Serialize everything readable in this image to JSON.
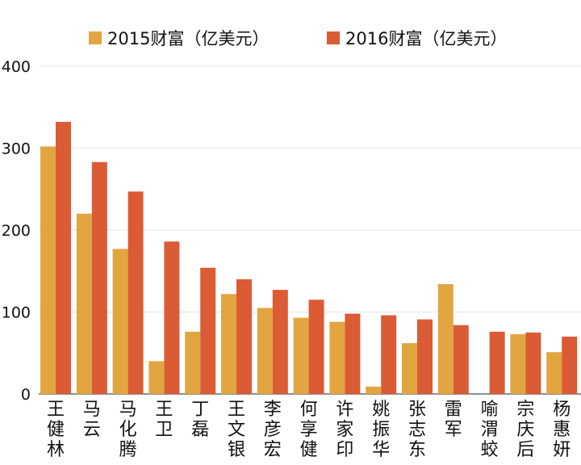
{
  "chart_data": {
    "type": "bar",
    "categories": [
      "王健林",
      "马云",
      "马化腾",
      "王卫",
      "丁磊",
      "王文银",
      "李彦宏",
      "何享健",
      "许家印",
      "姚振华",
      "张志东",
      "雷军",
      "喻渭蛟",
      "宗庆后",
      "杨惠妍"
    ],
    "series": [
      {
        "name": "2015财富（亿美元）",
        "values": [
          302,
          220,
          177,
          40,
          76,
          122,
          105,
          93,
          88,
          9,
          62,
          134,
          null,
          73,
          51
        ]
      },
      {
        "name": "2016财富（亿美元）",
        "values": [
          332,
          283,
          247,
          186,
          154,
          140,
          127,
          115,
          98,
          96,
          91,
          84,
          76,
          75,
          70
        ]
      }
    ],
    "ylim": [
      0,
      400
    ],
    "yticks": [
      0,
      100,
      200,
      300,
      400
    ],
    "grid": true,
    "legend_position": "top",
    "colors": [
      "#e2a640",
      "#db5b35"
    ]
  }
}
